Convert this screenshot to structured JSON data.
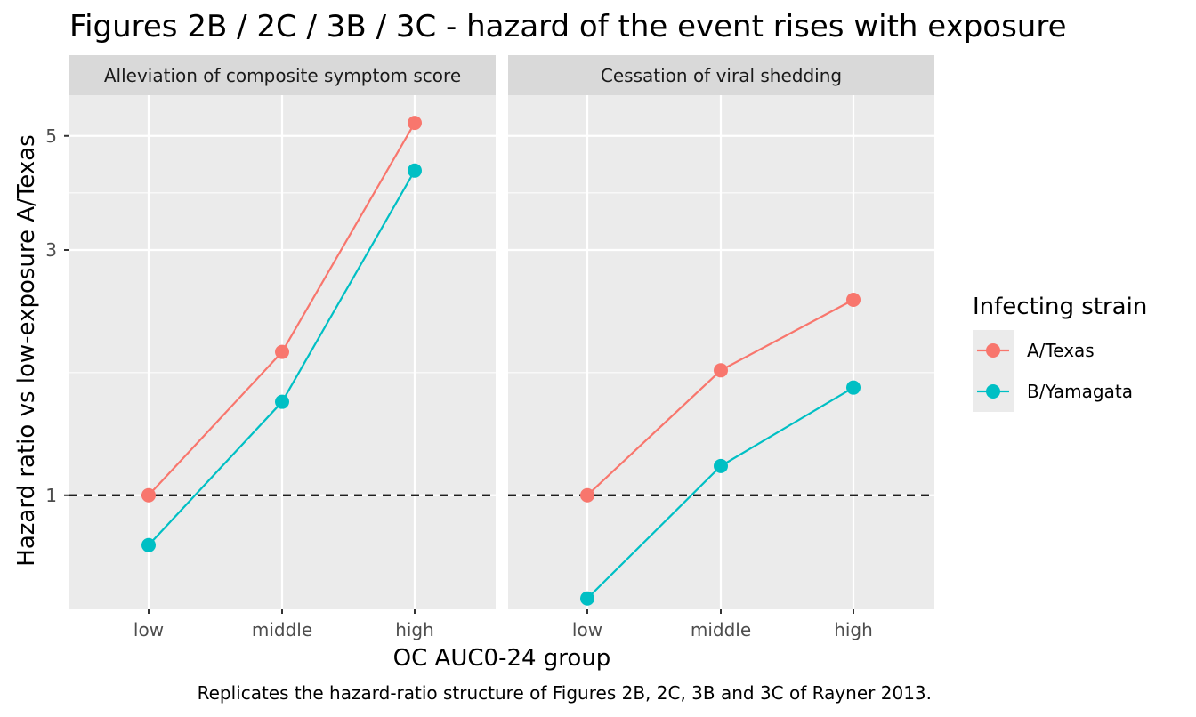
{
  "chart_data": {
    "type": "line",
    "title": "Figures 2B / 2C / 3B / 3C - hazard of the event rises with exposure",
    "caption": "Replicates the hazard-ratio structure of Figures 2B, 2C, 3B and 3C of Rayner 2013.",
    "xlabel": "OC AUC0-24 group",
    "ylabel": "Hazard ratio vs low-exposure A/Texas",
    "y_scale": "log",
    "ylim": [
      0.6,
      6.0
    ],
    "yticks": [
      1,
      3,
      5
    ],
    "ytick_labels": [
      "1",
      "3",
      "5"
    ],
    "categories": [
      "low",
      "middle",
      "high"
    ],
    "reference_line": {
      "y": 1,
      "style": "dashed"
    },
    "grid": true,
    "legend": {
      "title": "Infecting strain",
      "placement": "right",
      "entries": [
        "A/Texas",
        "B/Yamagata"
      ]
    },
    "colors": {
      "A/Texas": "#F8766D",
      "B/Yamagata": "#00BFC4"
    },
    "panels": [
      {
        "strip": "Alleviation of composite symptom score",
        "series": [
          {
            "name": "A/Texas",
            "values": [
              1.0,
              1.9,
              5.3
            ]
          },
          {
            "name": "B/Yamagata",
            "values": [
              0.8,
              1.52,
              4.28
            ]
          }
        ]
      },
      {
        "strip": "Cessation of viral shedding",
        "series": [
          {
            "name": "A/Texas",
            "values": [
              1.0,
              1.75,
              2.4
            ]
          },
          {
            "name": "B/Yamagata",
            "values": [
              0.63,
              1.14,
              1.62
            ]
          }
        ]
      }
    ]
  }
}
